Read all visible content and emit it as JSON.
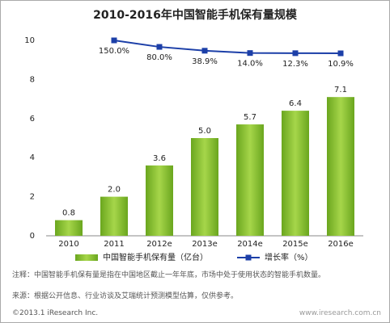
{
  "chart_data": {
    "type": "bar-line",
    "title": "2010-2016年中国智能手机保有量规模",
    "categories": [
      "2010",
      "2011",
      "2012e",
      "2013e",
      "2014e",
      "2015e",
      "2016e"
    ],
    "series": [
      {
        "name": "中国智能手机保有量（亿台）",
        "color": "#8cc63e",
        "values": [
          0.8,
          2.0,
          3.6,
          5.0,
          5.7,
          6.4,
          7.1
        ],
        "value_labels": [
          "0.8",
          "2.0",
          "3.6",
          "5.0",
          "5.7",
          "6.4",
          "7.1"
        ]
      },
      {
        "name": "增长率（%）",
        "color": "#1c3fa8",
        "axis": "y2",
        "values": [
          null,
          150.0,
          80.0,
          38.9,
          14.0,
          12.3,
          10.9
        ],
        "value_labels": [
          null,
          "150.0%",
          "80.0%",
          "38.9%",
          "14.0%",
          "12.3%",
          "10.9%"
        ]
      }
    ],
    "ylim": [
      0,
      10
    ],
    "yticks": [
      0,
      2,
      4,
      6,
      8,
      10
    ],
    "y2lim": [
      -1950,
      150
    ],
    "legend": "bottom",
    "note": "注释：中国智能手机保有量是指在中国地区截止一年年底，市场中处于使用状态的智能手机数量。",
    "source": "来源：根据公开信息、行业访谈及艾瑞统计预测模型估算，仅供参考。",
    "copyright": "©2013.1 iResearch Inc.",
    "website": "www.iresearch.com.cn"
  }
}
